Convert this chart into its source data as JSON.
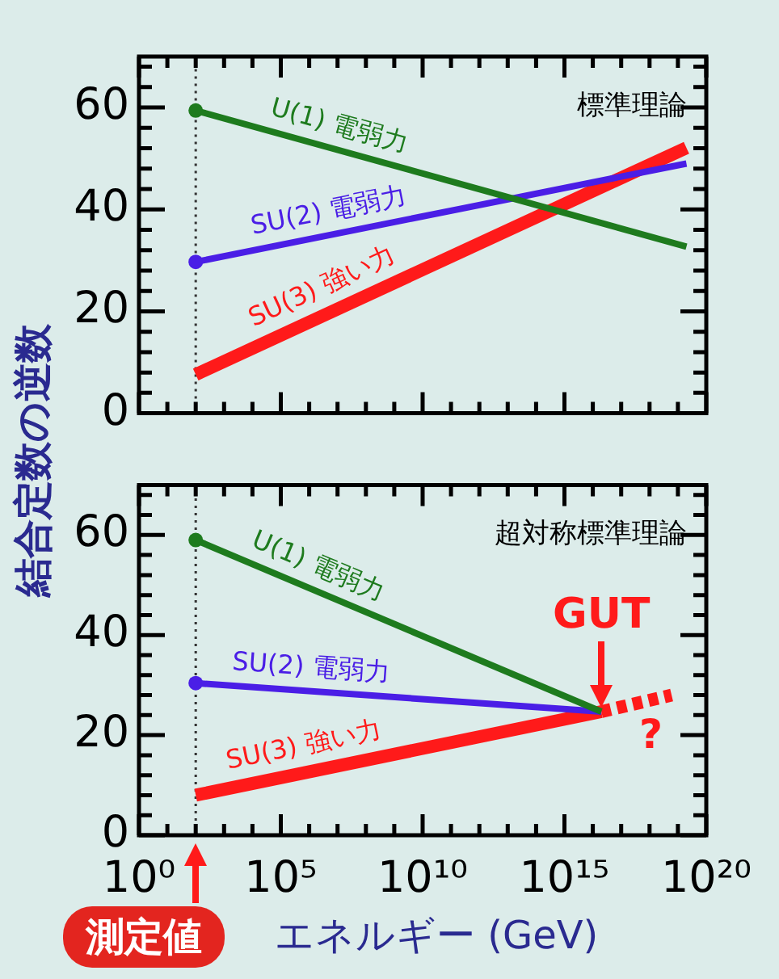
{
  "chart_data": [
    {
      "type": "line",
      "title": "標準理論",
      "ylabel": "結合定数の逆数",
      "log": "x",
      "xlim": [
        1,
        1e+20
      ],
      "ylim": [
        0,
        70
      ],
      "xticks": [
        {
          "value": 1,
          "label": null
        },
        {
          "value": 10,
          "label": null
        },
        {
          "value": 100,
          "label": null
        },
        {
          "value": 1000.0,
          "label": null
        },
        {
          "value": 10000.0,
          "label": null
        },
        {
          "value": 100000.0,
          "label": null
        },
        {
          "value": 1000000.0,
          "label": null
        },
        {
          "value": 10000000.0,
          "label": null
        },
        {
          "value": 100000000.0,
          "label": null
        },
        {
          "value": 1000000000.0,
          "label": null
        },
        {
          "value": 10000000000.0,
          "label": null
        },
        {
          "value": 100000000000.0,
          "label": null
        },
        {
          "value": 1000000000000.0,
          "label": null
        },
        {
          "value": 10000000000000.0,
          "label": null
        },
        {
          "value": 100000000000000.0,
          "label": null
        },
        {
          "value": 1000000000000000.0,
          "label": null
        },
        {
          "value": 1e+16,
          "label": null
        },
        {
          "value": 1e+17,
          "label": null
        },
        {
          "value": 1e+18,
          "label": null
        },
        {
          "value": 1e+19,
          "label": null
        },
        {
          "value": 1e+20,
          "label": null
        }
      ],
      "yticks": [
        0,
        {
          "value": 4,
          "label": null
        },
        {
          "value": 8,
          "label": null
        },
        {
          "value": 12,
          "label": null
        },
        {
          "value": 16,
          "label": null
        },
        20,
        {
          "value": 24,
          "label": null
        },
        {
          "value": 28,
          "label": null
        },
        {
          "value": 32,
          "label": null
        },
        {
          "value": 36,
          "label": null
        },
        40,
        {
          "value": 44,
          "label": null
        },
        {
          "value": 48,
          "label": null
        },
        {
          "value": 52,
          "label": null
        },
        {
          "value": 56,
          "label": null
        },
        60,
        {
          "value": 64,
          "label": null
        },
        {
          "value": 68,
          "label": null
        }
      ],
      "tick_labels": "y",
      "grid": false,
      "legend": false,
      "marker": "none",
      "ref_lines": [
        {
          "axis": "x",
          "value": 100,
          "color": "#333333",
          "line_style": "dotted"
        }
      ],
      "series": [
        {
          "name": "U(1) 電弱力",
          "color": "#1e7b1e",
          "x": [
            100,
            2e+19
          ],
          "values": [
            59.4,
            32.7
          ]
        },
        {
          "name": "SU(2) 電弱力",
          "color": "#4a1ee6",
          "x": [
            100,
            2e+19
          ],
          "values": [
            29.7,
            49
          ]
        },
        {
          "name": "SU(3) 強い力",
          "color": "#ff1a1a",
          "x": [
            100,
            2e+19
          ],
          "values": [
            7.6,
            52.1
          ]
        },
        {
          "type": "scatter",
          "marker": "circle",
          "x": [
            100,
            100
          ],
          "values": [
            59.4,
            29.7
          ],
          "colors": [
            "#1e7b1e",
            "#4a1ee6"
          ]
        }
      ]
    },
    {
      "type": "line",
      "title": "超対称標準理論",
      "xlabel": "エネルギー (GeV)",
      "log": "x",
      "xlim": [
        1,
        1e+20
      ],
      "ylim": [
        0,
        70
      ],
      "xticks": [
        {
          "value": 1,
          "label": "10⁰"
        },
        {
          "value": 10,
          "label": null
        },
        {
          "value": 100,
          "label": null
        },
        {
          "value": 1000.0,
          "label": null
        },
        {
          "value": 10000.0,
          "label": null
        },
        {
          "value": 100000.0,
          "label": "10⁵"
        },
        {
          "value": 1000000.0,
          "label": null
        },
        {
          "value": 10000000.0,
          "label": null
        },
        {
          "value": 100000000.0,
          "label": null
        },
        {
          "value": 1000000000.0,
          "label": null
        },
        {
          "value": 10000000000.0,
          "label": "10¹⁰"
        },
        {
          "value": 100000000000.0,
          "label": null
        },
        {
          "value": 1000000000000.0,
          "label": null
        },
        {
          "value": 10000000000000.0,
          "label": null
        },
        {
          "value": 100000000000000.0,
          "label": null
        },
        {
          "value": 1000000000000000.0,
          "label": "10¹⁵"
        },
        {
          "value": 1e+16,
          "label": null
        },
        {
          "value": 1e+17,
          "label": null
        },
        {
          "value": 1e+18,
          "label": null
        },
        {
          "value": 1e+19,
          "label": null
        },
        {
          "value": 1e+20,
          "label": "10²⁰"
        }
      ],
      "yticks": [
        0,
        {
          "value": 4,
          "label": null
        },
        {
          "value": 8,
          "label": null
        },
        {
          "value": 12,
          "label": null
        },
        {
          "value": 16,
          "label": null
        },
        20,
        {
          "value": 24,
          "label": null
        },
        {
          "value": 28,
          "label": null
        },
        {
          "value": 32,
          "label": null
        },
        {
          "value": 36,
          "label": null
        },
        40,
        {
          "value": 44,
          "label": null
        },
        {
          "value": 48,
          "label": null
        },
        {
          "value": 52,
          "label": null
        },
        {
          "value": 56,
          "label": null
        },
        60,
        {
          "value": 64,
          "label": null
        },
        {
          "value": 68,
          "label": null
        }
      ],
      "grid": false,
      "legend": false,
      "marker": "none",
      "ref_lines": [
        {
          "axis": "x",
          "value": 100,
          "color": "#333333",
          "line_style": "dotted"
        }
      ],
      "annotations": [
        "GUT",
        "?",
        "測定値"
      ],
      "series": [
        {
          "name": "U(1) 電弱力",
          "color": "#1e7b1e",
          "x": [
            100,
            2e+16
          ],
          "values": [
            59,
            24.7
          ]
        },
        {
          "name": "SU(2) 電弱力",
          "color": "#4a1ee6",
          "x": [
            100,
            2e+16
          ],
          "values": [
            30.4,
            24.7
          ]
        },
        {
          "name": "SU(3) 強い力",
          "color": "#ff1a1a",
          "x": [
            100,
            2e+16
          ],
          "values": [
            8,
            24.7
          ]
        },
        {
          "color": "#ff1a1a",
          "line_style": "dashed",
          "x": [
            2e+16,
            6e+18
          ],
          "values": [
            24.7,
            28
          ]
        },
        {
          "type": "scatter",
          "marker": "circle",
          "x": [
            100,
            100
          ],
          "values": [
            59,
            30.4
          ],
          "colors": [
            "#1e7b1e",
            "#4a1ee6"
          ]
        }
      ]
    }
  ]
}
